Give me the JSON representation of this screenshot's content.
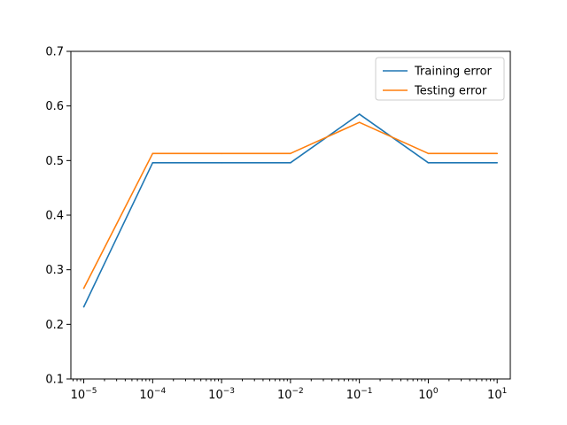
{
  "chart_data": {
    "type": "line",
    "title": "",
    "xlabel": "",
    "ylabel": "",
    "x_scale": "log",
    "x": [
      1e-05,
      0.0001,
      0.001,
      0.01,
      0.1,
      1,
      10
    ],
    "series": [
      {
        "name": "Training error",
        "color": "#1f77b4",
        "values": [
          0.232,
          0.496,
          0.496,
          0.496,
          0.585,
          0.496,
          0.496
        ]
      },
      {
        "name": "Testing error",
        "color": "#ff7f0e",
        "values": [
          0.266,
          0.513,
          0.513,
          0.513,
          0.57,
          0.513,
          0.513
        ]
      }
    ],
    "xlim": [
      6.5e-06,
      15.5
    ],
    "ylim": [
      0.1,
      0.7
    ],
    "x_ticks": [
      {
        "value": 1e-05,
        "base": "10",
        "exp": "−5"
      },
      {
        "value": 0.0001,
        "base": "10",
        "exp": "−4"
      },
      {
        "value": 0.001,
        "base": "10",
        "exp": "−3"
      },
      {
        "value": 0.01,
        "base": "10",
        "exp": "−2"
      },
      {
        "value": 0.1,
        "base": "10",
        "exp": "−1"
      },
      {
        "value": 1,
        "base": "10",
        "exp": "0"
      },
      {
        "value": 10,
        "base": "10",
        "exp": "1"
      }
    ],
    "y_ticks": [
      "0.1",
      "0.2",
      "0.3",
      "0.4",
      "0.5",
      "0.6",
      "0.7"
    ],
    "grid": false,
    "legend_position": "top-right"
  }
}
